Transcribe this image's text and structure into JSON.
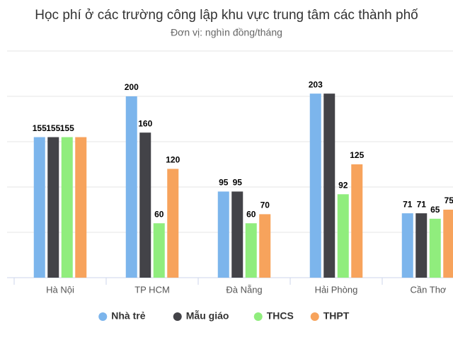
{
  "chart_data": {
    "type": "bar",
    "title": "Học phí ở các trường công lập khu vực trung tâm các thành phố",
    "subtitle": "Đơn vị: nghìn đồng/tháng",
    "categories": [
      "Hà Nội",
      "TP HCM",
      "Đà Nẵng",
      "Hải Phòng",
      "Cần Thơ"
    ],
    "series": [
      {
        "name": "Nhà trẻ",
        "color": "#7cb5ec",
        "values": [
          155,
          200,
          95,
          203,
          71
        ]
      },
      {
        "name": "Mẫu giáo",
        "color": "#434348",
        "values": [
          155,
          160,
          95,
          203,
          71
        ],
        "value_labels": [
          "155",
          "160",
          "95",
          null,
          "71"
        ]
      },
      {
        "name": "THCS",
        "color": "#90ed7d",
        "values": [
          155,
          60,
          60,
          92,
          65
        ]
      },
      {
        "name": "THPT",
        "color": "#f7a35c",
        "values": [
          155,
          120,
          70,
          125,
          75
        ],
        "value_labels": [
          null,
          "120",
          "70",
          "125",
          "75"
        ]
      }
    ],
    "ylim": [
      0,
      250
    ],
    "yticks": [
      0,
      50,
      100,
      150,
      200,
      250
    ],
    "grid": true,
    "y_tick_labels": false,
    "legend": "bottom"
  }
}
